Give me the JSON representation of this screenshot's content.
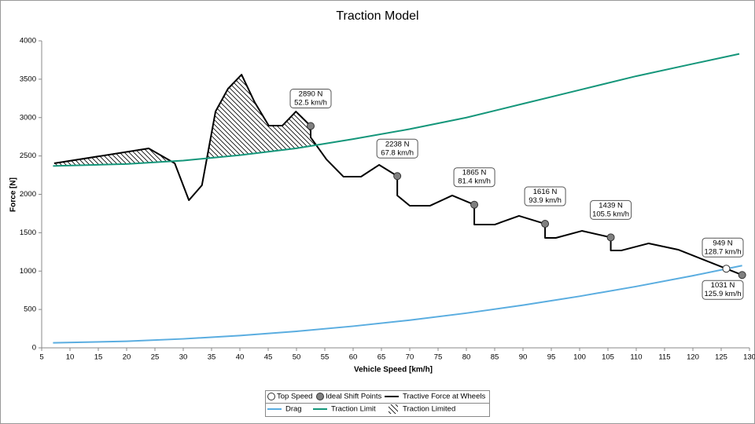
{
  "chart_data": {
    "type": "line",
    "title": "Traction Model",
    "xlabel": "Vehicle Speed [km/h]",
    "ylabel": "Force [N]",
    "xlim": [
      5,
      130
    ],
    "xticks": [
      5,
      10,
      15,
      20,
      25,
      30,
      35,
      40,
      45,
      50,
      55,
      60,
      65,
      70,
      75,
      80,
      85,
      90,
      95,
      100,
      105,
      110,
      115,
      120,
      125,
      130
    ],
    "ylim": [
      0,
      4000
    ],
    "yticks": [
      0,
      500,
      1000,
      1500,
      2000,
      2500,
      3000,
      3500,
      4000
    ],
    "grid": false,
    "hatch_label": "Traction Limited",
    "hatch_between": [
      2,
      4
    ],
    "series": [
      {
        "name": "Top Speed",
        "color": "#ffffff",
        "style": "marker",
        "x": [
          125.9
        ],
        "values": [
          1031
        ],
        "value_labels": [
          [
            "1031 N",
            "125.9 km/h"
          ]
        ],
        "label_side": "below"
      },
      {
        "name": "Ideal Shift Points",
        "color": "#808080",
        "style": "marker",
        "x": [
          52.5,
          67.8,
          81.4,
          93.9,
          105.5,
          128.7
        ],
        "values": [
          2890,
          2238,
          1865,
          1616,
          1439,
          949
        ],
        "value_labels": [
          [
            "2890 N",
            "52.5 km/h"
          ],
          [
            "2238 N",
            "67.8 km/h"
          ],
          [
            "1865 N",
            "81.4 km/h"
          ],
          [
            "1616 N",
            "93.9 km/h"
          ],
          [
            "1439 N",
            "105.5 km/h"
          ],
          [
            "949 N",
            "128.7 km/h"
          ]
        ],
        "label_side": "above"
      },
      {
        "name": "Tractive Force at Wheels",
        "color": "#000000",
        "style": "line",
        "x": [
          7.2,
          23.9,
          28.5,
          31,
          33.3,
          35.7,
          37.9,
          40.3,
          42.6,
          45.1,
          47.5,
          49.9,
          52.5,
          52.5,
          55.3,
          58.3,
          61.4,
          64.6,
          67.8,
          67.8,
          70,
          73.6,
          77.5,
          81.4,
          81.4,
          85,
          89.3,
          93.9,
          93.9,
          95.8,
          100.4,
          105.5,
          105.5,
          107.4,
          112.2,
          117.4,
          125.9,
          128.7
        ],
        "values": [
          2404,
          2598,
          2404,
          1923,
          2118,
          3079,
          3376,
          3560,
          3202,
          2895,
          2895,
          3079,
          2890,
          2742,
          2455,
          2230,
          2230,
          2384,
          2238,
          1985,
          1852,
          1852,
          1985,
          1865,
          1606,
          1606,
          1719,
          1616,
          1432,
          1432,
          1524,
          1439,
          1269,
          1269,
          1361,
          1279,
          1031,
          949
        ]
      },
      {
        "name": "Drag",
        "color": "#5aade0",
        "style": "line",
        "x": [
          7,
          20,
          30,
          40,
          50,
          60,
          70,
          80,
          90,
          100,
          110,
          120,
          128.7
        ],
        "values": [
          65,
          86,
          117,
          160,
          215,
          282,
          361,
          452,
          556,
          672,
          800,
          940,
          1072
        ]
      },
      {
        "name": "Traction Limit",
        "color": "#14967a",
        "style": "line",
        "x": [
          7,
          15,
          20,
          30,
          40,
          50,
          55,
          60,
          70,
          80,
          90,
          100,
          110,
          120,
          128.2
        ],
        "values": [
          2370,
          2385,
          2395,
          2440,
          2510,
          2600,
          2660,
          2720,
          2850,
          3000,
          3180,
          3360,
          3540,
          3700,
          3830
        ]
      }
    ]
  }
}
